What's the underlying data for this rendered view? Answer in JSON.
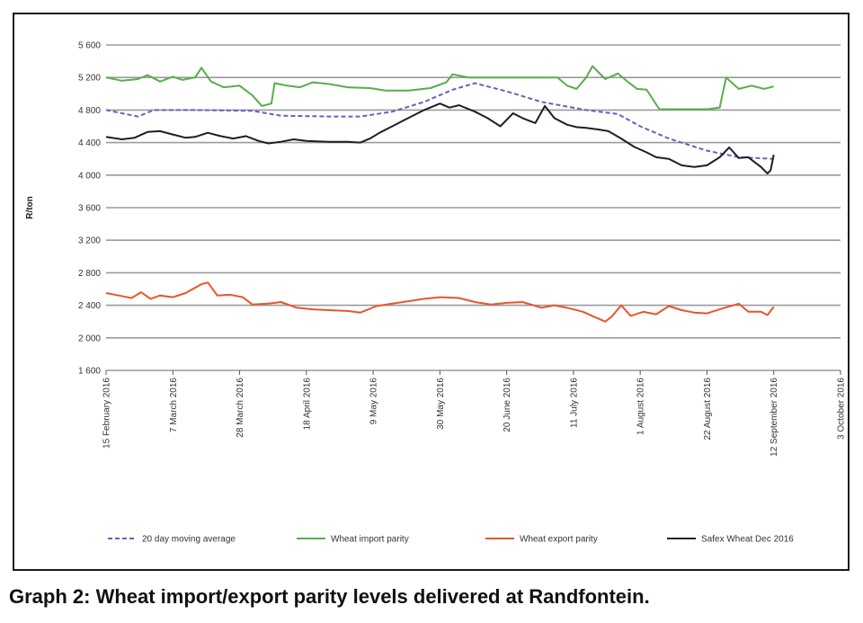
{
  "caption": "Graph 2: Wheat import/export parity levels delivered at Randfontein.",
  "chart_data": {
    "type": "line",
    "title": "",
    "xlabel": "",
    "ylabel": "R/ton",
    "ylim": [
      1600,
      5600
    ],
    "yticks": [
      1600,
      2000,
      2400,
      2800,
      3200,
      3600,
      4000,
      4400,
      4800,
      5200,
      5600
    ],
    "ytick_labels": [
      "1 600",
      "2 000",
      "2 400",
      "2 800",
      "3 200",
      "3 600",
      "4 000",
      "4 400",
      "4 800",
      "5 200",
      "5 600"
    ],
    "xlim": [
      "2016-02-15",
      "2016-10-03"
    ],
    "xticks": [
      "2016-02-15",
      "2016-03-07",
      "2016-03-28",
      "2016-04-18",
      "2016-05-09",
      "2016-05-30",
      "2016-06-20",
      "2016-07-11",
      "2016-08-01",
      "2016-08-22",
      "2016-09-12",
      "2016-10-03"
    ],
    "xtick_labels": [
      "15 February 2016",
      "7 March 2016",
      "28 March 2016",
      "18 April 2016",
      "9 May 2016",
      "30 May 2016",
      "20 June 2016",
      "11 July 2016",
      "1 August 2016",
      "22 August 2016",
      "12 September 2016",
      "3 October 2016"
    ],
    "grid": true,
    "legend_position": "bottom",
    "series": [
      {
        "name": "20 day moving average",
        "color": "#6a5fc1",
        "dash": true,
        "points": [
          [
            "2016-02-15",
            4800
          ],
          [
            "2016-02-20",
            4760
          ],
          [
            "2016-02-25",
            4720
          ],
          [
            "2016-03-01",
            4800
          ],
          [
            "2016-03-14",
            4800
          ],
          [
            "2016-04-01",
            4790
          ],
          [
            "2016-04-10",
            4730
          ],
          [
            "2016-04-25",
            4720
          ],
          [
            "2016-05-05",
            4720
          ],
          [
            "2016-05-15",
            4780
          ],
          [
            "2016-05-25",
            4900
          ],
          [
            "2016-06-03",
            5050
          ],
          [
            "2016-06-10",
            5130
          ],
          [
            "2016-06-20",
            5030
          ],
          [
            "2016-07-01",
            4900
          ],
          [
            "2016-07-15",
            4800
          ],
          [
            "2016-07-25",
            4750
          ],
          [
            "2016-08-01",
            4600
          ],
          [
            "2016-08-10",
            4450
          ],
          [
            "2016-08-22",
            4300
          ],
          [
            "2016-09-01",
            4220
          ],
          [
            "2016-09-12",
            4200
          ]
        ]
      },
      {
        "name": "Wheat import parity",
        "color": "#5aac4e",
        "dash": false,
        "points": [
          [
            "2016-02-15",
            5200
          ],
          [
            "2016-02-20",
            5160
          ],
          [
            "2016-02-25",
            5180
          ],
          [
            "2016-02-28",
            5230
          ],
          [
            "2016-03-03",
            5150
          ],
          [
            "2016-03-07",
            5210
          ],
          [
            "2016-03-10",
            5170
          ],
          [
            "2016-03-14",
            5200
          ],
          [
            "2016-03-16",
            5320
          ],
          [
            "2016-03-19",
            5150
          ],
          [
            "2016-03-23",
            5080
          ],
          [
            "2016-03-28",
            5100
          ],
          [
            "2016-04-01",
            4980
          ],
          [
            "2016-04-04",
            4850
          ],
          [
            "2016-04-07",
            4880
          ],
          [
            "2016-04-08",
            5130
          ],
          [
            "2016-04-12",
            5100
          ],
          [
            "2016-04-16",
            5080
          ],
          [
            "2016-04-20",
            5140
          ],
          [
            "2016-04-25",
            5120
          ],
          [
            "2016-05-01",
            5080
          ],
          [
            "2016-05-08",
            5070
          ],
          [
            "2016-05-13",
            5040
          ],
          [
            "2016-05-20",
            5040
          ],
          [
            "2016-05-27",
            5070
          ],
          [
            "2016-06-01",
            5140
          ],
          [
            "2016-06-03",
            5240
          ],
          [
            "2016-06-08",
            5200
          ],
          [
            "2016-06-15",
            5200
          ],
          [
            "2016-06-22",
            5200
          ],
          [
            "2016-07-01",
            5200
          ],
          [
            "2016-07-06",
            5200
          ],
          [
            "2016-07-09",
            5100
          ],
          [
            "2016-07-12",
            5060
          ],
          [
            "2016-07-15",
            5200
          ],
          [
            "2016-07-17",
            5340
          ],
          [
            "2016-07-21",
            5180
          ],
          [
            "2016-07-25",
            5250
          ],
          [
            "2016-07-28",
            5150
          ],
          [
            "2016-07-31",
            5060
          ],
          [
            "2016-08-03",
            5050
          ],
          [
            "2016-08-07",
            4810
          ],
          [
            "2016-08-14",
            4810
          ],
          [
            "2016-08-22",
            4810
          ],
          [
            "2016-08-26",
            4830
          ],
          [
            "2016-08-28",
            5200
          ],
          [
            "2016-09-01",
            5060
          ],
          [
            "2016-09-05",
            5100
          ],
          [
            "2016-09-09",
            5060
          ],
          [
            "2016-09-12",
            5090
          ]
        ]
      },
      {
        "name": "Wheat export parity",
        "color": "#e8562a",
        "dash": false,
        "points": [
          [
            "2016-02-15",
            2550
          ],
          [
            "2016-02-19",
            2520
          ],
          [
            "2016-02-23",
            2490
          ],
          [
            "2016-02-26",
            2560
          ],
          [
            "2016-02-29",
            2480
          ],
          [
            "2016-03-03",
            2520
          ],
          [
            "2016-03-07",
            2500
          ],
          [
            "2016-03-11",
            2550
          ],
          [
            "2016-03-16",
            2660
          ],
          [
            "2016-03-18",
            2680
          ],
          [
            "2016-03-21",
            2520
          ],
          [
            "2016-03-25",
            2530
          ],
          [
            "2016-03-29",
            2500
          ],
          [
            "2016-04-01",
            2410
          ],
          [
            "2016-04-06",
            2420
          ],
          [
            "2016-04-10",
            2440
          ],
          [
            "2016-04-15",
            2370
          ],
          [
            "2016-04-20",
            2350
          ],
          [
            "2016-04-25",
            2340
          ],
          [
            "2016-05-01",
            2330
          ],
          [
            "2016-05-05",
            2310
          ],
          [
            "2016-05-10",
            2390
          ],
          [
            "2016-05-15",
            2420
          ],
          [
            "2016-05-20",
            2450
          ],
          [
            "2016-05-25",
            2480
          ],
          [
            "2016-05-30",
            2500
          ],
          [
            "2016-06-05",
            2490
          ],
          [
            "2016-06-10",
            2440
          ],
          [
            "2016-06-15",
            2410
          ],
          [
            "2016-06-20",
            2430
          ],
          [
            "2016-06-25",
            2440
          ],
          [
            "2016-07-01",
            2370
          ],
          [
            "2016-07-05",
            2400
          ],
          [
            "2016-07-10",
            2360
          ],
          [
            "2016-07-14",
            2320
          ],
          [
            "2016-07-18",
            2250
          ],
          [
            "2016-07-21",
            2200
          ],
          [
            "2016-07-23",
            2260
          ],
          [
            "2016-07-26",
            2400
          ],
          [
            "2016-07-29",
            2270
          ],
          [
            "2016-08-02",
            2320
          ],
          [
            "2016-08-06",
            2290
          ],
          [
            "2016-08-10",
            2390
          ],
          [
            "2016-08-14",
            2340
          ],
          [
            "2016-08-18",
            2310
          ],
          [
            "2016-08-22",
            2300
          ],
          [
            "2016-08-26",
            2350
          ],
          [
            "2016-09-01",
            2420
          ],
          [
            "2016-09-04",
            2320
          ],
          [
            "2016-09-08",
            2320
          ],
          [
            "2016-09-10",
            2280
          ],
          [
            "2016-09-12",
            2380
          ]
        ]
      },
      {
        "name": "Safex Wheat Dec 2016",
        "color": "#1e1e28",
        "dash": false,
        "points": [
          [
            "2016-02-15",
            4470
          ],
          [
            "2016-02-20",
            4440
          ],
          [
            "2016-02-24",
            4460
          ],
          [
            "2016-02-28",
            4530
          ],
          [
            "2016-03-03",
            4540
          ],
          [
            "2016-03-07",
            4500
          ],
          [
            "2016-03-11",
            4460
          ],
          [
            "2016-03-14",
            4470
          ],
          [
            "2016-03-18",
            4520
          ],
          [
            "2016-03-22",
            4480
          ],
          [
            "2016-03-26",
            4450
          ],
          [
            "2016-03-30",
            4480
          ],
          [
            "2016-04-03",
            4420
          ],
          [
            "2016-04-06",
            4390
          ],
          [
            "2016-04-10",
            4410
          ],
          [
            "2016-04-14",
            4440
          ],
          [
            "2016-04-18",
            4420
          ],
          [
            "2016-04-25",
            4410
          ],
          [
            "2016-05-01",
            4410
          ],
          [
            "2016-05-05",
            4400
          ],
          [
            "2016-05-08",
            4450
          ],
          [
            "2016-05-11",
            4520
          ],
          [
            "2016-05-15",
            4600
          ],
          [
            "2016-05-20",
            4700
          ],
          [
            "2016-05-25",
            4800
          ],
          [
            "2016-05-30",
            4880
          ],
          [
            "2016-06-02",
            4830
          ],
          [
            "2016-06-05",
            4860
          ],
          [
            "2016-06-10",
            4780
          ],
          [
            "2016-06-14",
            4700
          ],
          [
            "2016-06-18",
            4600
          ],
          [
            "2016-06-22",
            4760
          ],
          [
            "2016-06-25",
            4700
          ],
          [
            "2016-06-29",
            4640
          ],
          [
            "2016-07-02",
            4850
          ],
          [
            "2016-07-05",
            4700
          ],
          [
            "2016-07-09",
            4620
          ],
          [
            "2016-07-12",
            4590
          ],
          [
            "2016-07-15",
            4580
          ],
          [
            "2016-07-19",
            4560
          ],
          [
            "2016-07-22",
            4540
          ],
          [
            "2016-07-26",
            4450
          ],
          [
            "2016-07-30",
            4350
          ],
          [
            "2016-08-03",
            4280
          ],
          [
            "2016-08-06",
            4220
          ],
          [
            "2016-08-10",
            4200
          ],
          [
            "2016-08-14",
            4120
          ],
          [
            "2016-08-18",
            4100
          ],
          [
            "2016-08-22",
            4120
          ],
          [
            "2016-08-26",
            4220
          ],
          [
            "2016-08-29",
            4340
          ],
          [
            "2016-09-01",
            4210
          ],
          [
            "2016-09-04",
            4220
          ],
          [
            "2016-09-08",
            4100
          ],
          [
            "2016-09-10",
            4020
          ],
          [
            "2016-09-11",
            4060
          ],
          [
            "2016-09-12",
            4250
          ]
        ]
      }
    ]
  }
}
